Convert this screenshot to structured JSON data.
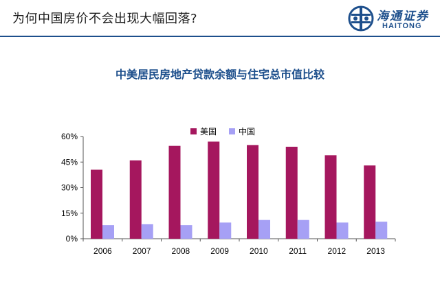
{
  "header": {
    "title": "为何中国房价不会出现大幅回落?",
    "logo_cn": "海通证券",
    "logo_en": "HAITONG"
  },
  "colors": {
    "accent": "#1d4f8c",
    "us_series": "#a5175e",
    "cn_series": "#a6a0f5"
  },
  "chart_data": {
    "type": "bar",
    "title": "中美居民房地产贷款余额与住宅总市值比较",
    "categories": [
      "2006",
      "2007",
      "2008",
      "2009",
      "2010",
      "2011",
      "2012",
      "2013"
    ],
    "series": [
      {
        "name": "美国",
        "values": [
          40.5,
          46,
          54.5,
          57,
          55,
          54,
          49,
          43
        ]
      },
      {
        "name": "中国",
        "values": [
          8,
          8.5,
          8,
          9.5,
          11,
          11,
          9.5,
          10
        ]
      }
    ],
    "yticks": [
      "0%",
      "15%",
      "30%",
      "45%",
      "60%"
    ],
    "ylim": [
      0,
      60
    ],
    "legend_position": "top-center",
    "grid": false
  }
}
